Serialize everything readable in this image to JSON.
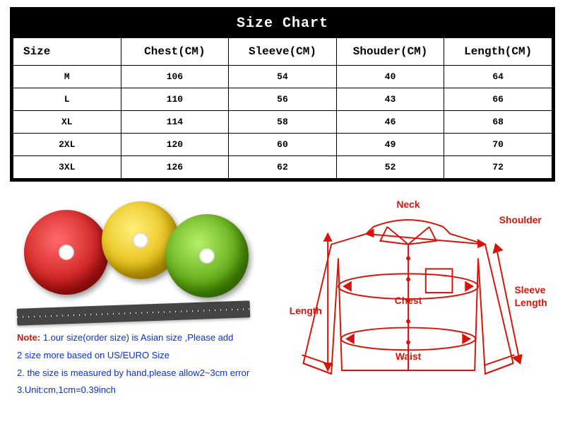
{
  "title": "Size Chart",
  "columns": [
    "Size",
    "Chest(CM)",
    "Sleeve(CM)",
    "Shouder(CM)",
    "Length(CM)"
  ],
  "rows": [
    [
      "M",
      "106",
      "54",
      "40",
      "64"
    ],
    [
      "L",
      "110",
      "56",
      "43",
      "66"
    ],
    [
      "XL",
      "114",
      "58",
      "46",
      "68"
    ],
    [
      "2XL",
      "120",
      "60",
      "49",
      "70"
    ],
    [
      "3XL",
      "126",
      "62",
      "52",
      "72"
    ]
  ],
  "note": {
    "lead": "Note:",
    "line1": " 1.our size(order size) is Asian size ,Please add",
    "line2": "2 size more based on US/EURO Size",
    "line3": "2. the size is measured by hand,please allow2~3cm error",
    "line4": "3.Unit:cm,1cm=0.39inch"
  },
  "diagram": {
    "neck": "Neck",
    "shoulder": "Shoulder",
    "chest": "Chest",
    "waist": "Waist",
    "length": "Length",
    "sleeve1": "Sleeve",
    "sleeve2": "Length"
  },
  "colors": {
    "outline": "#d6150b",
    "tape_red": "#c41111",
    "tape_yellow": "#e2b600",
    "tape_green": "#4a9a00",
    "note_text": "#0a2fd6"
  }
}
